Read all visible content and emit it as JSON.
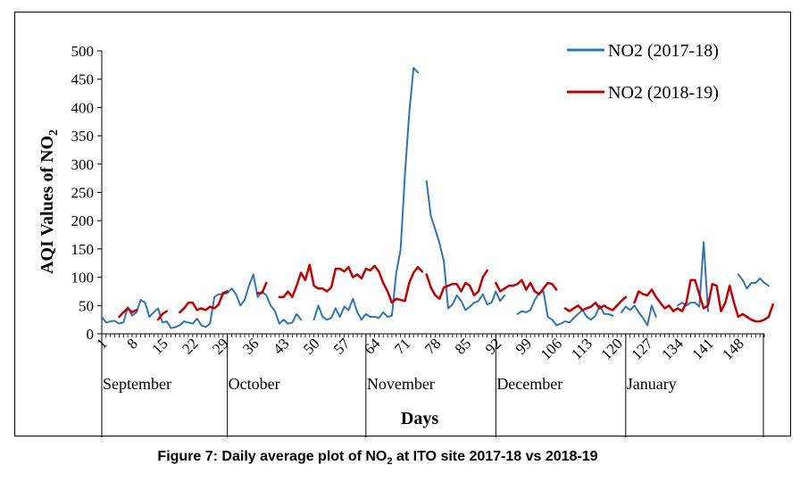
{
  "caption": {
    "prefix": "Figure 7: Daily average plot of NO",
    "subscript": "2",
    "suffix": " at ITO site 2017-18 vs 2018-19"
  },
  "chart_data": {
    "type": "line",
    "ylabel_main": "AQI Values of NO",
    "ylabel_sub": "2",
    "xlabel": "Days",
    "ylim": [
      0,
      500
    ],
    "yticks": [
      0,
      50,
      100,
      150,
      200,
      250,
      300,
      350,
      400,
      450,
      500
    ],
    "xlim": [
      1,
      154
    ],
    "xticks": [
      1,
      8,
      15,
      22,
      29,
      36,
      43,
      50,
      57,
      64,
      71,
      78,
      85,
      92,
      99,
      106,
      113,
      120,
      127,
      134,
      141,
      148
    ],
    "grid": false,
    "legend_position": "top-right",
    "months": [
      {
        "name": "September",
        "start": 1,
        "end": 30
      },
      {
        "name": "October",
        "start": 30,
        "end": 62
      },
      {
        "name": "November",
        "start": 62,
        "end": 92
      },
      {
        "name": "December",
        "start": 92,
        "end": 122
      },
      {
        "name": "January",
        "start": 122,
        "end": 155
      }
    ],
    "month_dividers": [
      1,
      30,
      62,
      92,
      122,
      155
    ],
    "series": [
      {
        "name": "NO2 (2017-18)",
        "color": "#2E75B6",
        "segments": [
          {
            "start": 1,
            "values": [
              30,
              20,
              22,
              23,
              18,
              20,
              47,
              32,
              38,
              60,
              55,
              30,
              38,
              45,
              20,
              22,
              10,
              12,
              15,
              22,
              20,
              18,
              27,
              15,
              12,
              18,
              65,
              70,
              70,
              72,
              80,
              70,
              50,
              60,
              85,
              105,
              65,
              75,
              68,
              50,
              40,
              18,
              25,
              18,
              20,
              35,
              25
            ]
          },
          {
            "start": 50,
            "values": [
              25,
              50,
              30,
              25,
              28,
              45,
              30,
              48,
              42,
              62,
              38,
              25,
              35,
              30,
              30,
              28,
              38,
              30,
              32,
              108,
              148,
              280,
              390,
              470,
              462
            ]
          },
          {
            "start": 76,
            "values": [
              270,
              208,
              185,
              160,
              128,
              45,
              52,
              68,
              58,
              42,
              48,
              55,
              58,
              70,
              52,
              55,
              75,
              58,
              68
            ]
          },
          {
            "start": 97,
            "values": [
              35,
              40,
              38,
              42,
              60,
              72,
              75,
              30,
              25,
              15,
              18,
              22,
              20,
              28,
              35,
              42,
              30,
              25,
              32,
              50,
              35,
              35,
              32
            ]
          },
          {
            "start": 121,
            "values": [
              38,
              48,
              42,
              50,
              38,
              28,
              15,
              50,
              30
            ]
          },
          {
            "start": 134,
            "values": [
              50,
              55,
              50,
              55,
              55,
              48,
              162,
              40
            ]
          },
          {
            "start": 148,
            "values": [
              105,
              95,
              80,
              90,
              90,
              98,
              90,
              85
            ]
          }
        ]
      },
      {
        "name": "NO2 (2018-19)",
        "color": "#C00000",
        "segments": [
          {
            "start": 5,
            "values": [
              30,
              38,
              45,
              38,
              42
            ]
          },
          {
            "start": 14,
            "values": [
              25,
              35,
              40
            ]
          },
          {
            "start": 19,
            "values": [
              38,
              45,
              55,
              55,
              42,
              45,
              42,
              48,
              45,
              52,
              72,
              75
            ]
          },
          {
            "start": 37,
            "values": [
              72,
              72,
              90
            ]
          },
          {
            "start": 42,
            "values": [
              65,
              65,
              75,
              65,
              85,
              108,
              95,
              122,
              85,
              80,
              80,
              75,
              82,
              115,
              115,
              110,
              118,
              100,
              105,
              98,
              115,
              112,
              120,
              110,
              90,
              75,
              55,
              62,
              60,
              58,
              90,
              108,
              118,
              110
            ]
          },
          {
            "start": 76,
            "values": [
              105,
              82,
              68,
              62,
              82,
              85,
              88,
              88,
              75,
              90,
              85,
              68,
              75,
              100,
              112
            ]
          },
          {
            "start": 92,
            "values": [
              90,
              75,
              80,
              85,
              85,
              88,
              95,
              78,
              90,
              75,
              70,
              80,
              90,
              88,
              78
            ]
          },
          {
            "start": 108,
            "values": [
              45,
              40,
              45,
              50,
              42,
              45,
              48,
              55,
              45,
              50,
              45,
              42,
              50,
              58,
              65
            ]
          },
          {
            "start": 124,
            "values": [
              55,
              75,
              70,
              68,
              78,
              65,
              55,
              45,
              50,
              40,
              45,
              40,
              55,
              95,
              95,
              70,
              45,
              50,
              88,
              85,
              40,
              55,
              85,
              55,
              30,
              35,
              30,
              25,
              22,
              22,
              25,
              30,
              52
            ]
          }
        ]
      }
    ]
  }
}
